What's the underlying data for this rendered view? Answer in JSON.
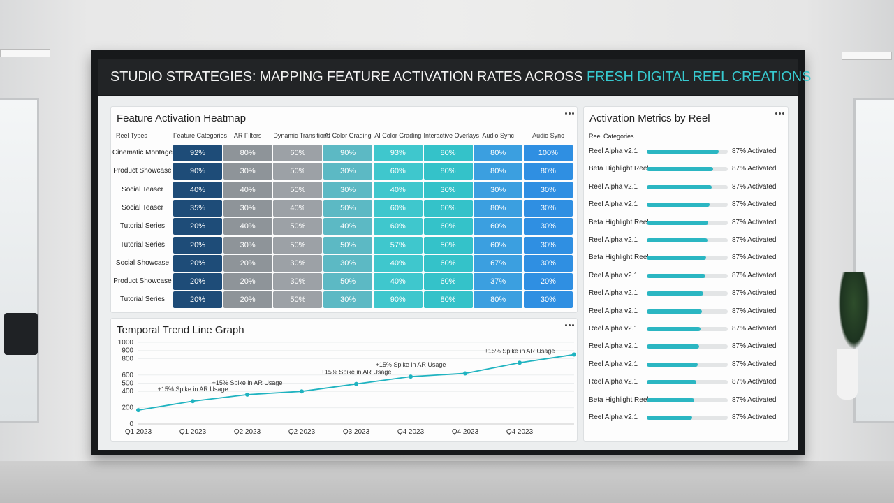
{
  "header": {
    "title": "STUDIO STRATEGIES: MAPPING FEATURE ACTIVATION RATES ACROSS ",
    "accent": "FRESH DIGITAL REEL CREATIONS"
  },
  "heatmap": {
    "title": "Feature Activation Heatmap",
    "headers": [
      "Reel Types",
      "Feature Categories",
      "AR Filters",
      "Dynamic Transitions",
      "AI Color Grading",
      "AI Color Grading",
      "Interactive Overlays",
      "Audio Sync",
      "Audio Sync"
    ],
    "rows": [
      {
        "label": "Cinematic Montage",
        "cells": [
          "92%",
          "80%",
          "60%",
          "90%",
          "93%",
          "80%",
          "80%",
          "100%"
        ]
      },
      {
        "label": "Product Showcase",
        "cells": [
          "90%",
          "30%",
          "50%",
          "30%",
          "60%",
          "80%",
          "80%",
          "80%"
        ]
      },
      {
        "label": "Social Teaser",
        "cells": [
          "40%",
          "40%",
          "50%",
          "30%",
          "40%",
          "30%",
          "30%",
          "30%"
        ]
      },
      {
        "label": "Social Teaser",
        "cells": [
          "35%",
          "30%",
          "40%",
          "50%",
          "60%",
          "60%",
          "80%",
          "30%"
        ]
      },
      {
        "label": "Tutorial Series",
        "cells": [
          "20%",
          "40%",
          "50%",
          "40%",
          "60%",
          "60%",
          "60%",
          "30%"
        ]
      },
      {
        "label": "Tutorial Series",
        "cells": [
          "20%",
          "30%",
          "50%",
          "50%",
          "57%",
          "50%",
          "60%",
          "30%"
        ]
      },
      {
        "label": "Social Showcase",
        "cells": [
          "20%",
          "20%",
          "30%",
          "30%",
          "40%",
          "60%",
          "67%",
          "30%"
        ]
      },
      {
        "label": "Product Showcase",
        "cells": [
          "20%",
          "20%",
          "30%",
          "50%",
          "40%",
          "60%",
          "37%",
          "20%"
        ]
      },
      {
        "label": "Tutorial Series",
        "cells": [
          "20%",
          "20%",
          "50%",
          "30%",
          "90%",
          "80%",
          "80%",
          "30%"
        ]
      }
    ]
  },
  "chart_data": {
    "type": "line",
    "title": "Temporal Trend Line Graph",
    "categories": [
      "Q1 2023",
      "Q1 2023",
      "Q2 2023",
      "Q2 2023",
      "Q3 2023",
      "Q4 2023",
      "Q4 2023",
      "Q4 2023",
      null
    ],
    "values": [
      170,
      280,
      360,
      400,
      490,
      580,
      620,
      750,
      850
    ],
    "color": "#1fb3c0",
    "ylim": [
      0,
      1000
    ],
    "yticks": [
      0,
      200,
      400,
      500,
      600,
      800,
      900,
      1000
    ],
    "grid": true,
    "annotations": [
      {
        "text": "+15% Spike in AR Usage",
        "index": 1
      },
      {
        "text": "+15% Spike in AR Usage",
        "index": 2
      },
      {
        "text": "+15% Spike in AR Usage",
        "index": 4
      },
      {
        "text": "+15% Spike in AR Usage",
        "index": 5
      },
      {
        "text": "+15% Spike in AR Usage",
        "index": 7
      }
    ]
  },
  "metrics": {
    "title": "Activation Metrics by Reel",
    "subtitle": "Reel Categories",
    "max": 100,
    "items": [
      {
        "label": "Reel Alpha v2.1",
        "value": 89,
        "status": "87% Activated"
      },
      {
        "label": "Beta Highlight Reel",
        "value": 82,
        "status": "87% Activated"
      },
      {
        "label": "Reel Alpha v2.1",
        "value": 80,
        "status": "87% Activated"
      },
      {
        "label": "Reel Alpha v2.1",
        "value": 78,
        "status": "87% Activated"
      },
      {
        "label": "Beta Highlight Reel",
        "value": 76,
        "status": "87% Activated"
      },
      {
        "label": "Reel Alpha v2.1",
        "value": 75,
        "status": "87% Activated"
      },
      {
        "label": "Beta Highlight Reel",
        "value": 73,
        "status": "87% Activated"
      },
      {
        "label": "Reel Alpha v2.1",
        "value": 72,
        "status": "87% Activated"
      },
      {
        "label": "Reel Alpha v2.1",
        "value": 70,
        "status": "87% Activated"
      },
      {
        "label": "Reel Alpha v2.1",
        "value": 68,
        "status": "87% Activated"
      },
      {
        "label": "Reel Alpha v2.1",
        "value": 66,
        "status": "87% Activated"
      },
      {
        "label": "Reel Alpha v2.1",
        "value": 65,
        "status": "87% Activated"
      },
      {
        "label": "Reel Alpha v2.1",
        "value": 63,
        "status": "87% Activated"
      },
      {
        "label": "Reel Alpha v2.1",
        "value": 61,
        "status": "87% Activated"
      },
      {
        "label": "Beta Highlight Reel",
        "value": 59,
        "status": "87% Activated"
      },
      {
        "label": "Reel Alpha v2.1",
        "value": 56,
        "status": "87% Activated"
      }
    ]
  }
}
